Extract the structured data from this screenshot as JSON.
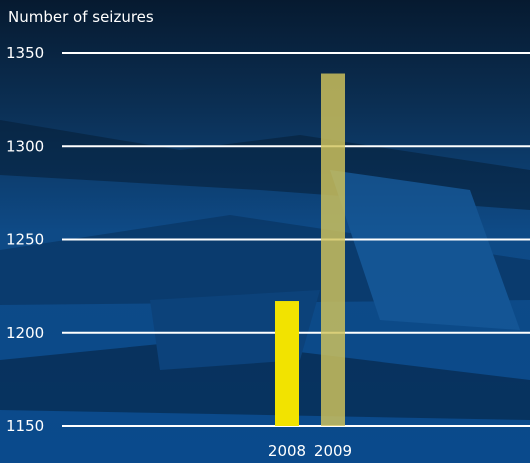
{
  "chart_data": {
    "type": "bar",
    "ylabel": "Number of seizures",
    "categories": [
      "2008",
      "2009"
    ],
    "values": [
      1217,
      1339
    ],
    "ylim": [
      1150,
      1350
    ],
    "yticks": [
      "1350",
      "1300",
      "1250",
      "1200",
      "1150"
    ],
    "grid": true,
    "colors": {
      "bar_2008": "#f2e300",
      "bar_2009": "#d2c45c",
      "grid": "#ffffff",
      "background": "#0d4a86"
    }
  }
}
